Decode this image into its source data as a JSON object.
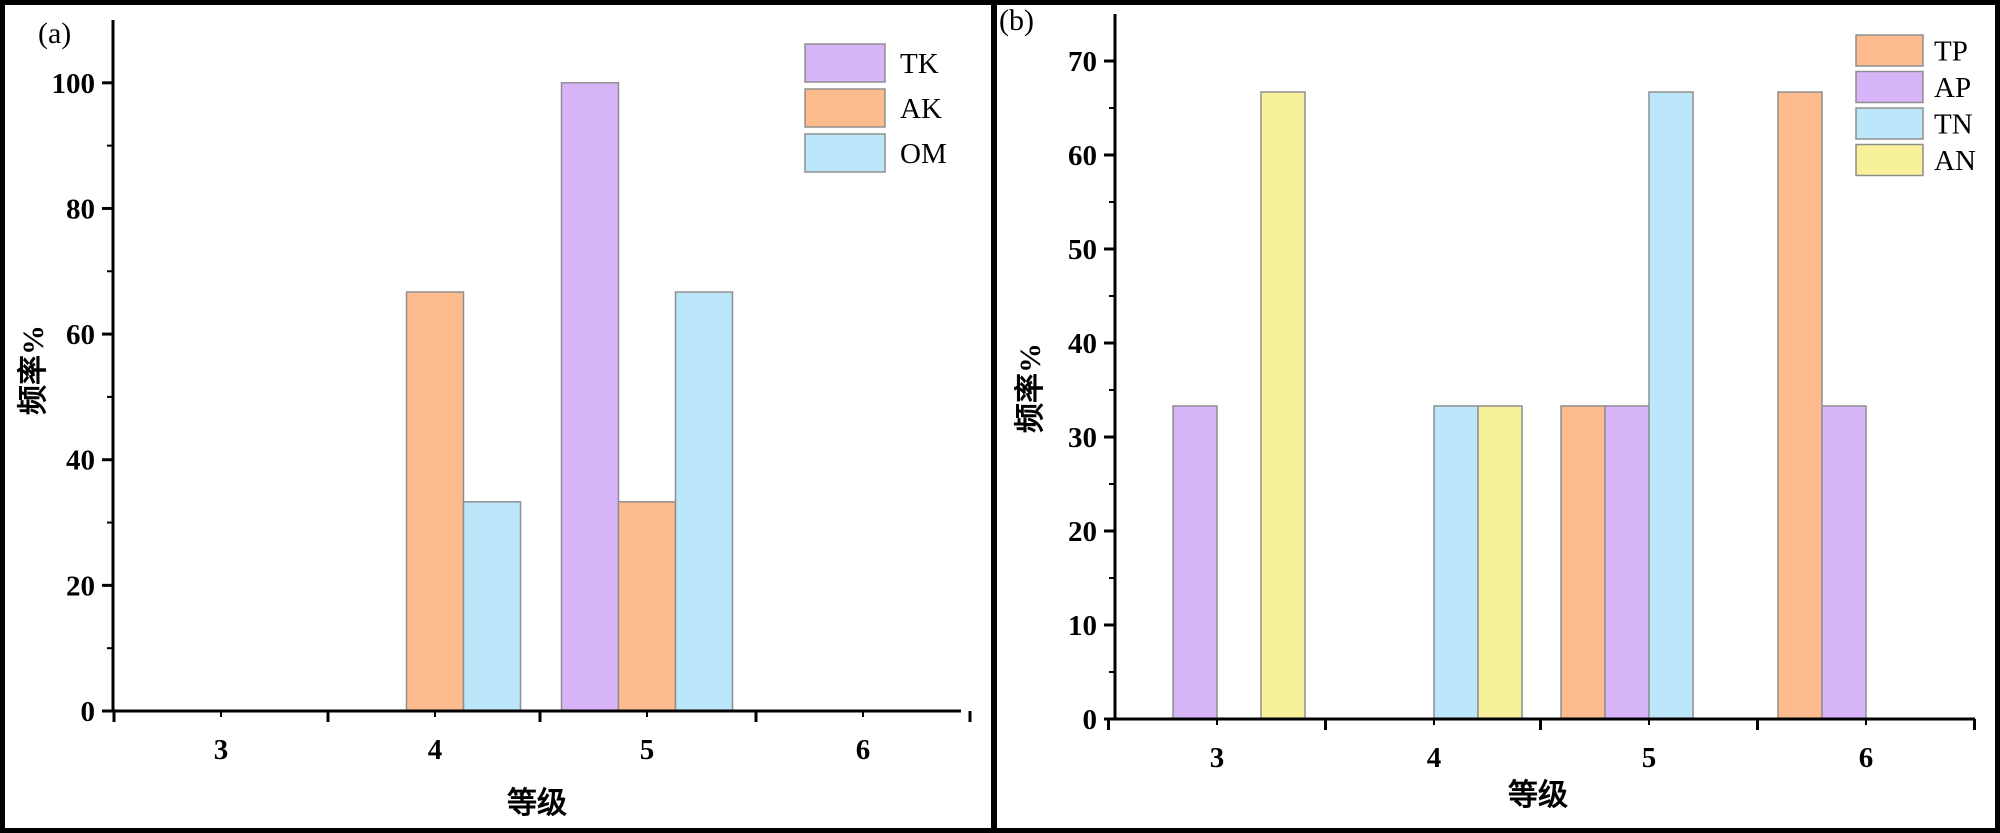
{
  "chart_data": [
    {
      "panel_label": "(a)",
      "type": "bar",
      "categories": [
        "3",
        "4",
        "5",
        "6"
      ],
      "series": [
        {
          "name": "TK",
          "color": "#d7b4f7",
          "values": [
            0,
            0,
            100,
            0
          ]
        },
        {
          "name": "AK",
          "color": "#fdbb8e",
          "values": [
            0,
            66.7,
            33.3,
            0
          ]
        },
        {
          "name": "OM",
          "color": "#bce6f9",
          "values": [
            0,
            33.3,
            66.7,
            0
          ]
        }
      ],
      "xlabel": "等级",
      "ylabel": "频率%",
      "ylim": [
        0,
        110
      ],
      "yticks": [
        0,
        20,
        40,
        60,
        80,
        100
      ],
      "grid": false,
      "legend": "top-right"
    },
    {
      "panel_label": "(b)",
      "type": "bar",
      "categories": [
        "3",
        "4",
        "5",
        "6"
      ],
      "series": [
        {
          "name": "TP",
          "color": "#fdbb8e",
          "values": [
            0,
            0,
            33.3,
            66.7
          ]
        },
        {
          "name": "AP",
          "color": "#d7b4f7",
          "values": [
            33.3,
            0,
            33.3,
            33.3
          ]
        },
        {
          "name": "TN",
          "color": "#bce6f9",
          "values": [
            0,
            33.3,
            66.7,
            0
          ]
        },
        {
          "name": "AN",
          "color": "#f6f19a",
          "values": [
            66.7,
            33.3,
            0,
            0
          ]
        }
      ],
      "xlabel": "等级",
      "ylabel": "频率%",
      "ylim": [
        0,
        75
      ],
      "yticks": [
        0,
        10,
        20,
        30,
        40,
        50,
        60,
        70
      ],
      "grid": false,
      "legend": "top-right"
    }
  ]
}
